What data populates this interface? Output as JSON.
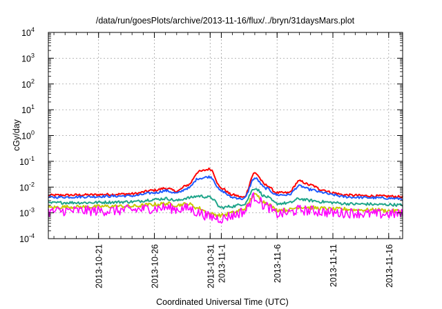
{
  "chart_data": {
    "type": "line",
    "title": "/data/run/goesPlots/archive/2013-11-16/flux/../bryn/31daysMars.plot",
    "xlabel": "Coordinated Universal Time (UTC)",
    "ylabel": "cGy/day",
    "yscale": "log",
    "ylim": [
      0.0001,
      10000
    ],
    "xlim": [
      "2013-10-16T12:00",
      "2013-11-17T06:00"
    ],
    "grid": true,
    "x_ticks": [
      {
        "date": "2013-10-21",
        "label": "2013-10-21"
      },
      {
        "date": "2013-10-26",
        "label": "2013-10-26"
      },
      {
        "date": "2013-10-31",
        "label": "2013-10-31"
      },
      {
        "date": "2013-11-01",
        "label": "2013-11-1"
      },
      {
        "date": "2013-11-06",
        "label": "2013-11-6"
      },
      {
        "date": "2013-11-11",
        "label": "2013-11-11"
      },
      {
        "date": "2013-11-16",
        "label": "2013-11-16"
      }
    ],
    "y_ticks": [
      {
        "value": 0.0001,
        "base": "10",
        "exp": "-4"
      },
      {
        "value": 0.001,
        "base": "10",
        "exp": "-3"
      },
      {
        "value": 0.01,
        "base": "10",
        "exp": "-2"
      },
      {
        "value": 0.1,
        "base": "10",
        "exp": "-1"
      },
      {
        "value": 1,
        "base": "10",
        "exp": "0"
      },
      {
        "value": 10,
        "base": "10",
        "exp": "1"
      },
      {
        "value": 100,
        "base": "10",
        "exp": "2"
      },
      {
        "value": 1000,
        "base": "10",
        "exp": "3"
      },
      {
        "value": 10000,
        "base": "10",
        "exp": "4"
      }
    ],
    "series": [
      {
        "color": "#ff0000",
        "x": [
          "2013-10-16T12:00",
          "2013-10-18",
          "2013-10-20",
          "2013-10-22",
          "2013-10-24",
          "2013-10-26",
          "2013-10-27",
          "2013-10-28",
          "2013-10-29",
          "2013-10-30",
          "2013-10-31",
          "2013-11-01",
          "2013-11-02",
          "2013-11-03",
          "2013-11-04",
          "2013-11-05",
          "2013-11-06",
          "2013-11-07",
          "2013-11-08",
          "2013-11-09",
          "2013-11-10",
          "2013-11-11",
          "2013-11-12",
          "2013-11-13",
          "2013-11-14",
          "2013-11-15",
          "2013-11-16",
          "2013-11-17T06:00"
        ],
        "values": [
          0.0048,
          0.0049,
          0.005,
          0.0052,
          0.0055,
          0.0075,
          0.009,
          0.007,
          0.012,
          0.04,
          0.05,
          0.009,
          0.005,
          0.004,
          0.035,
          0.012,
          0.006,
          0.006,
          0.017,
          0.012,
          0.008,
          0.006,
          0.005,
          0.0048,
          0.0046,
          0.0045,
          0.0044,
          0.0042
        ]
      },
      {
        "color": "#1e5aff",
        "x": [
          "2013-10-16T12:00",
          "2013-10-18",
          "2013-10-20",
          "2013-10-22",
          "2013-10-24",
          "2013-10-26",
          "2013-10-27",
          "2013-10-28",
          "2013-10-29",
          "2013-10-30",
          "2013-10-31",
          "2013-11-01",
          "2013-11-02",
          "2013-11-03",
          "2013-11-04",
          "2013-11-05",
          "2013-11-06",
          "2013-11-07",
          "2013-11-08",
          "2013-11-09",
          "2013-11-10",
          "2013-11-11",
          "2013-11-12",
          "2013-11-13",
          "2013-11-14",
          "2013-11-15",
          "2013-11-16",
          "2013-11-17T06:00"
        ],
        "values": [
          0.004,
          0.0041,
          0.0042,
          0.0044,
          0.0046,
          0.006,
          0.0072,
          0.0058,
          0.009,
          0.022,
          0.025,
          0.007,
          0.004,
          0.0035,
          0.022,
          0.009,
          0.005,
          0.005,
          0.011,
          0.008,
          0.0062,
          0.005,
          0.0042,
          0.004,
          0.0039,
          0.0038,
          0.0037,
          0.0035
        ]
      },
      {
        "color": "#1fa58a",
        "x": [
          "2013-10-16T12:00",
          "2013-10-18",
          "2013-10-20",
          "2013-10-22",
          "2013-10-24",
          "2013-10-26",
          "2013-10-27",
          "2013-10-28",
          "2013-10-29",
          "2013-10-30",
          "2013-10-31",
          "2013-11-01",
          "2013-11-02",
          "2013-11-03",
          "2013-11-04",
          "2013-11-05",
          "2013-11-06",
          "2013-11-07",
          "2013-11-08",
          "2013-11-09",
          "2013-11-10",
          "2013-11-11",
          "2013-11-12",
          "2013-11-13",
          "2013-11-14",
          "2013-11-15",
          "2013-11-16",
          "2013-11-17T06:00"
        ],
        "values": [
          0.0024,
          0.0025,
          0.0025,
          0.0026,
          0.0027,
          0.0033,
          0.0036,
          0.003,
          0.0038,
          0.0045,
          0.004,
          0.0016,
          0.0018,
          0.0022,
          0.009,
          0.0042,
          0.0023,
          0.0024,
          0.0035,
          0.003,
          0.0027,
          0.0025,
          0.0023,
          0.0022,
          0.0022,
          0.0021,
          0.0021,
          0.002
        ]
      },
      {
        "color": "#c8c800",
        "x": [
          "2013-10-16T12:00",
          "2013-10-18",
          "2013-10-20",
          "2013-10-22",
          "2013-10-24",
          "2013-10-26",
          "2013-10-27",
          "2013-10-28",
          "2013-10-29",
          "2013-10-30",
          "2013-10-31",
          "2013-11-01",
          "2013-11-02",
          "2013-11-03",
          "2013-11-04",
          "2013-11-05",
          "2013-11-06",
          "2013-11-07",
          "2013-11-08",
          "2013-11-09",
          "2013-11-10",
          "2013-11-11",
          "2013-11-12",
          "2013-11-13",
          "2013-11-14",
          "2013-11-15",
          "2013-11-16",
          "2013-11-17T06:00"
        ],
        "values": [
          0.0016,
          0.0017,
          0.0017,
          0.0018,
          0.0018,
          0.0021,
          0.0023,
          0.002,
          0.0022,
          0.0015,
          0.0009,
          0.0008,
          0.001,
          0.0014,
          0.005,
          0.0025,
          0.0013,
          0.0013,
          0.0017,
          0.0016,
          0.0015,
          0.0014,
          0.0014,
          0.0013,
          0.0013,
          0.0013,
          0.0012,
          0.0012
        ]
      },
      {
        "color": "#ff00ff",
        "x": [
          "2013-10-16T12:00",
          "2013-10-18",
          "2013-10-20",
          "2013-10-22",
          "2013-10-24",
          "2013-10-26",
          "2013-10-27",
          "2013-10-28",
          "2013-10-29",
          "2013-10-30",
          "2013-10-31",
          "2013-11-01",
          "2013-11-02",
          "2013-11-03",
          "2013-11-04",
          "2013-11-05",
          "2013-11-06",
          "2013-11-07",
          "2013-11-08",
          "2013-11-09",
          "2013-11-10",
          "2013-11-11",
          "2013-11-12",
          "2013-11-13",
          "2013-11-14",
          "2013-11-15",
          "2013-11-16",
          "2013-11-17T06:00"
        ],
        "values": [
          0.0011,
          0.0012,
          0.0012,
          0.0012,
          0.0013,
          0.0015,
          0.0016,
          0.0014,
          0.0015,
          0.001,
          0.0007,
          0.0006,
          0.0008,
          0.0011,
          0.0042,
          0.0018,
          0.0009,
          0.001,
          0.0013,
          0.0012,
          0.0011,
          0.001,
          0.001,
          0.001,
          0.0009,
          0.0009,
          0.0009,
          0.0009
        ]
      }
    ]
  }
}
